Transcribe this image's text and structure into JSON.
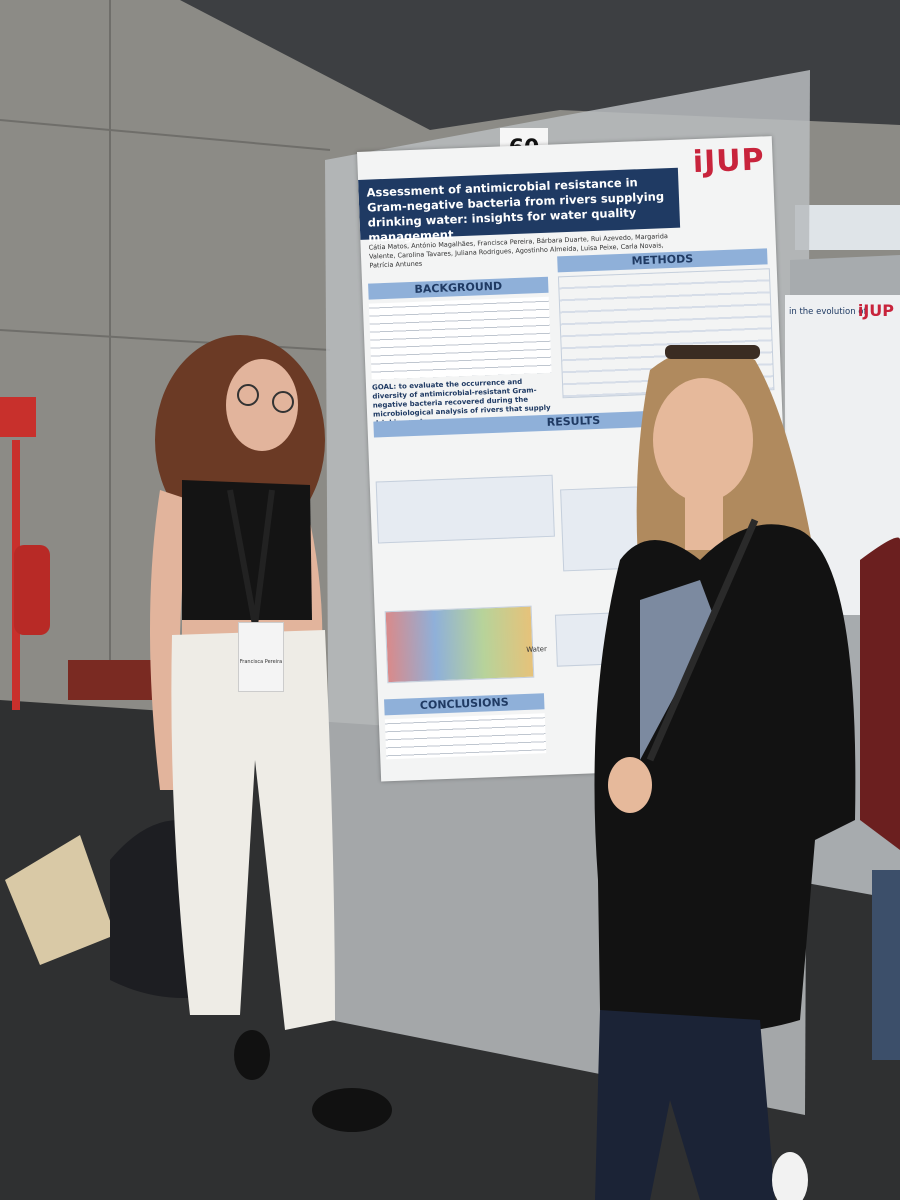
{
  "scene": {
    "poster_number": "60",
    "poster": {
      "logo": "iJUP",
      "title": "Assessment of antimicrobial resistance in Gram-negative bacteria from rivers supplying drinking water: insights for water quality management",
      "authors": "Cátia Matos, António Magalhães, Francisca Pereira, Bárbara Duarte, Rui Azevedo, Margarida Valente, Carolina Tavares, Juliana Rodrigues, Agostinho Almeida, Luisa Peixe, Carla Novais, Patrícia Antunes",
      "sections": [
        "BACKGROUND",
        "METHODS",
        "RESULTS",
        "CONCLUSIONS"
      ],
      "goal": "GOAL: to evaluate the occurrence and diversity of antimicrobial-resistant Gram-negative bacteria recovered during the microbiological analysis of rivers that supply drinking water.",
      "figure_label": "Water"
    },
    "badge": "Francisca Pereira",
    "neighbor_poster": {
      "title": "in the evolution of",
      "logo": "iJUP"
    }
  }
}
